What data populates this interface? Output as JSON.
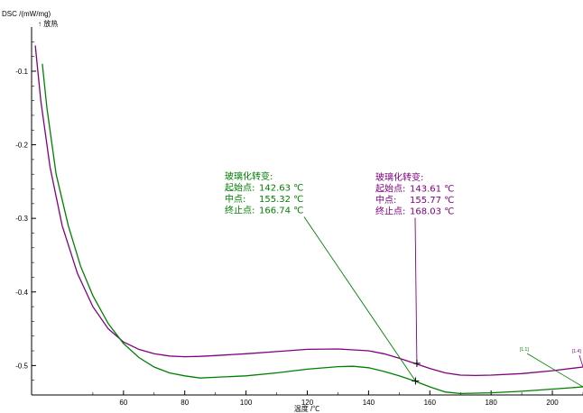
{
  "chart_data": {
    "type": "line",
    "ylabel": "DSC /(mW/mg)",
    "exo_label": "↑ 放热",
    "xlabel": "温度 /℃",
    "xlim": [
      30,
      210
    ],
    "ylim": [
      -0.54,
      -0.04
    ],
    "x_ticks": [
      60,
      80,
      100,
      120,
      140,
      160,
      180,
      200
    ],
    "y_ticks": [
      -0.1,
      -0.2,
      -0.3,
      -0.4,
      -0.5
    ],
    "y_tick_labels": [
      "-0.1",
      "-0.2",
      "-0.3",
      "-0.4",
      "-0.5"
    ],
    "series": [
      {
        "color": "#800080",
        "tag": "[1.4]",
        "x": [
          31.2,
          33,
          36,
          40,
          45,
          50,
          55,
          60,
          65,
          70,
          75,
          80,
          85,
          90,
          100,
          110,
          120,
          130,
          140,
          145,
          150,
          155,
          160,
          165,
          170,
          175,
          180,
          190,
          200,
          210
        ],
        "y": [
          -0.065,
          -0.14,
          -0.23,
          -0.31,
          -0.375,
          -0.42,
          -0.45,
          -0.468,
          -0.478,
          -0.484,
          -0.487,
          -0.488,
          -0.4875,
          -0.4865,
          -0.484,
          -0.481,
          -0.478,
          -0.4775,
          -0.48,
          -0.484,
          -0.49,
          -0.497,
          -0.504,
          -0.51,
          -0.513,
          -0.5135,
          -0.513,
          -0.511,
          -0.507,
          -0.502
        ]
      },
      {
        "color": "#008000",
        "tag": "[1.1]",
        "x": [
          33.5,
          35,
          38,
          42,
          46,
          50,
          55,
          60,
          65,
          70,
          75,
          80,
          85,
          90,
          100,
          110,
          120,
          130,
          135,
          140,
          145,
          150,
          155,
          160,
          165,
          170,
          180,
          190,
          200,
          210
        ],
        "y": [
          -0.09,
          -0.15,
          -0.24,
          -0.31,
          -0.365,
          -0.405,
          -0.443,
          -0.47,
          -0.489,
          -0.502,
          -0.51,
          -0.514,
          -0.517,
          -0.516,
          -0.514,
          -0.51,
          -0.505,
          -0.5015,
          -0.501,
          -0.503,
          -0.508,
          -0.514,
          -0.521,
          -0.529,
          -0.536,
          -0.538,
          -0.537,
          -0.535,
          -0.532,
          -0.529
        ]
      }
    ],
    "annotations": [
      {
        "color": "#008000",
        "heading": "玻璃化转变:",
        "rows": [
          {
            "label": "起始点:",
            "value": "142.63 ℃"
          },
          {
            "label": "中点:",
            "value": "155.32 ℃"
          },
          {
            "label": "终止点:",
            "value": "166.74 ℃"
          }
        ],
        "point": [
          155.32,
          -0.521
        ]
      },
      {
        "color": "#800080",
        "heading": "玻璃化转变:",
        "rows": [
          {
            "label": "起始点:",
            "value": "143.61 ℃"
          },
          {
            "label": "中点:",
            "value": "155.77 ℃"
          },
          {
            "label": "终止点:",
            "value": "168.03 ℃"
          }
        ],
        "point": [
          155.77,
          -0.497
        ]
      }
    ]
  }
}
